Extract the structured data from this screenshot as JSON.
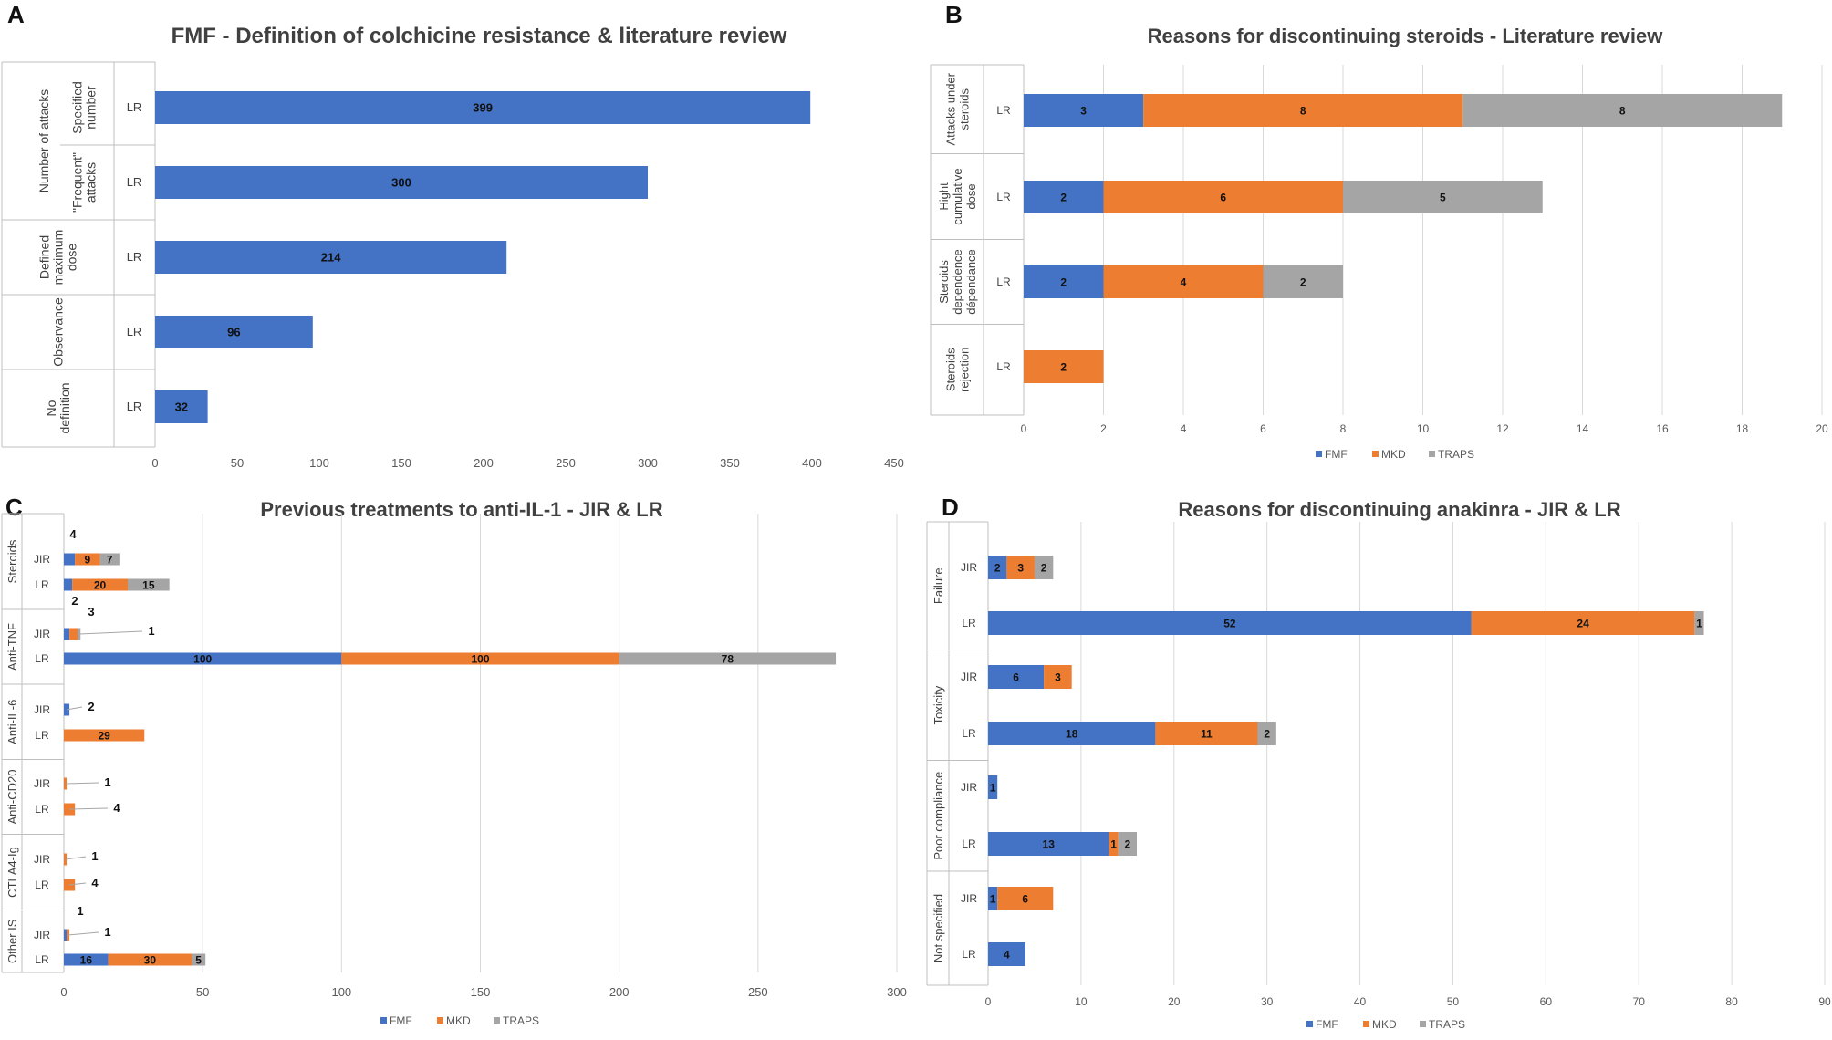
{
  "panels": [
    {
      "letter": "A",
      "chart_data": {
        "type": "bar",
        "orientation": "horizontal",
        "stacked": false,
        "title": "FMF - Definition of colchicine resistance & literature review",
        "xlim": [
          0,
          450
        ],
        "xticks": [
          0,
          50,
          100,
          150,
          200,
          250,
          300,
          350,
          400,
          450
        ],
        "groups": [
          {
            "label": "Number of attacks",
            "rows": [
              {
                "sublabel": "Specified number",
                "label": "LR",
                "values": [
                  399
                ]
              },
              {
                "sublabel": "\"Frequent\" attacks",
                "label": "LR",
                "values": [
                  300
                ]
              }
            ]
          },
          {
            "label": "Defined maximum dose",
            "rows": [
              {
                "label": "LR",
                "values": [
                  214
                ]
              }
            ]
          },
          {
            "label": "Observance",
            "rows": [
              {
                "label": "LR",
                "values": [
                  96
                ]
              }
            ]
          },
          {
            "label": "No definition",
            "rows": [
              {
                "label": "LR",
                "values": [
                  32
                ]
              }
            ]
          }
        ],
        "series": [
          {
            "name": "",
            "color": "#4472c4"
          }
        ],
        "legend": null
      }
    },
    {
      "letter": "B",
      "chart_data": {
        "type": "bar",
        "orientation": "horizontal",
        "stacked": true,
        "title": "Reasons for discontinuing steroids - Literature review",
        "xlim": [
          0,
          20
        ],
        "xticks": [
          0,
          2,
          4,
          6,
          8,
          10,
          12,
          14,
          16,
          18,
          20
        ],
        "groups": [
          {
            "label": "Attacks under steroids",
            "rows": [
              {
                "label": "LR",
                "values": [
                  3,
                  8,
                  8
                ]
              }
            ]
          },
          {
            "label": "Hight cumulative dose",
            "rows": [
              {
                "label": "LR",
                "values": [
                  2,
                  6,
                  5
                ]
              }
            ]
          },
          {
            "label": "Steroids dependence dépendance",
            "rows": [
              {
                "label": "LR",
                "values": [
                  2,
                  4,
                  2
                ]
              }
            ]
          },
          {
            "label": "Steroids rejection",
            "rows": [
              {
                "label": "LR",
                "values": [
                  0,
                  2,
                  0
                ]
              }
            ]
          }
        ],
        "series": [
          {
            "name": "FMF",
            "color": "#4472c4"
          },
          {
            "name": "MKD",
            "color": "#ed7d31"
          },
          {
            "name": "TRAPS",
            "color": "#a5a5a5"
          }
        ],
        "legend": "bottom"
      }
    },
    {
      "letter": "C",
      "chart_data": {
        "type": "bar",
        "orientation": "horizontal",
        "stacked": true,
        "title": "Previous treatments to anti-IL-1 - JIR & LR",
        "xlim": [
          0,
          300
        ],
        "xticks": [
          0,
          50,
          100,
          150,
          200,
          250,
          300
        ],
        "groups": [
          {
            "label": "Steroids",
            "rows": [
              {
                "label": "JIR",
                "values": [
                  4,
                  9,
                  7
                ]
              },
              {
                "label": "LR",
                "values": [
                  3,
                  20,
                  15
                ]
              }
            ]
          },
          {
            "label": "Anti-TNF",
            "rows": [
              {
                "label": "JIR",
                "values": [
                  2,
                  3,
                  1
                ]
              },
              {
                "label": "LR",
                "values": [
                  100,
                  100,
                  78
                ]
              }
            ]
          },
          {
            "label": "Anti-IL-6",
            "rows": [
              {
                "label": "JIR",
                "values": [
                  2,
                  0,
                  0
                ]
              },
              {
                "label": "LR",
                "values": [
                  0,
                  29,
                  0
                ]
              }
            ]
          },
          {
            "label": "Anti-CD20",
            "rows": [
              {
                "label": "JIR",
                "values": [
                  0,
                  1,
                  0
                ]
              },
              {
                "label": "LR",
                "values": [
                  0,
                  4,
                  0
                ]
              }
            ]
          },
          {
            "label": "CTLA4-Ig",
            "rows": [
              {
                "label": "JIR",
                "values": [
                  0,
                  1,
                  0
                ]
              },
              {
                "label": "LR",
                "values": [
                  0,
                  4,
                  0
                ]
              }
            ]
          },
          {
            "label": "Other IS",
            "rows": [
              {
                "label": "JIR",
                "values": [
                  1,
                  1,
                  0
                ]
              },
              {
                "label": "LR",
                "values": [
                  16,
                  30,
                  5
                ]
              }
            ]
          }
        ],
        "series": [
          {
            "name": "FMF",
            "color": "#4472c4"
          },
          {
            "name": "MKD",
            "color": "#ed7d31"
          },
          {
            "name": "TRAPS",
            "color": "#a5a5a5"
          }
        ],
        "legend": "bottom"
      }
    },
    {
      "letter": "D",
      "chart_data": {
        "type": "bar",
        "orientation": "horizontal",
        "stacked": true,
        "title": "Reasons for discontinuing anakinra - JIR & LR",
        "xlim": [
          0,
          90
        ],
        "xticks": [
          0,
          10,
          20,
          30,
          40,
          50,
          60,
          70,
          80,
          90
        ],
        "groups": [
          {
            "label": "Failure",
            "rows": [
              {
                "label": "JIR",
                "values": [
                  2,
                  3,
                  2
                ]
              },
              {
                "label": "LR",
                "values": [
                  52,
                  24,
                  1
                ]
              }
            ]
          },
          {
            "label": "Toxicity",
            "rows": [
              {
                "label": "JIR",
                "values": [
                  6,
                  3,
                  0
                ]
              },
              {
                "label": "LR",
                "values": [
                  18,
                  11,
                  2
                ]
              }
            ]
          },
          {
            "label": "Poor compliance",
            "rows": [
              {
                "label": "JIR",
                "values": [
                  1,
                  0,
                  0
                ]
              },
              {
                "label": "LR",
                "values": [
                  13,
                  1,
                  2
                ]
              }
            ]
          },
          {
            "label": "Not specified",
            "rows": [
              {
                "label": "JIR",
                "values": [
                  1,
                  6,
                  0
                ]
              },
              {
                "label": "LR",
                "values": [
                  4,
                  0,
                  0
                ]
              }
            ]
          }
        ],
        "series": [
          {
            "name": "FMF",
            "color": "#4472c4"
          },
          {
            "name": "MKD",
            "color": "#ed7d31"
          },
          {
            "name": "TRAPS",
            "color": "#a5a5a5"
          }
        ],
        "legend": "bottom"
      }
    }
  ]
}
